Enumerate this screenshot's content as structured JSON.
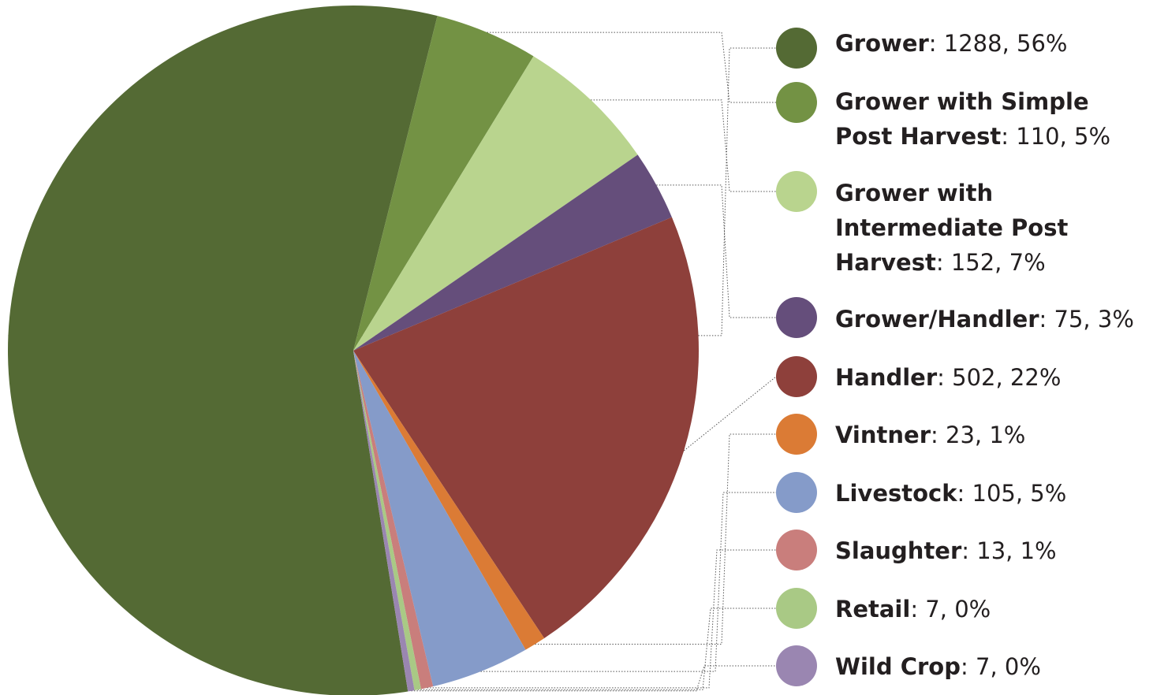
{
  "chart_data": {
    "type": "pie",
    "title": "",
    "slices": [
      {
        "label": "Grower",
        "value": 1288,
        "percent_label": "56%",
        "color": "#546a34"
      },
      {
        "label": "Grower with Simple Post Harvest",
        "value": 110,
        "percent_label": "5%",
        "color": "#739244"
      },
      {
        "label": "Grower with Intermediate Post Harvest",
        "value": 152,
        "percent_label": "7%",
        "color": "#b9d48e"
      },
      {
        "label": "Grower/Handler",
        "value": 75,
        "percent_label": "3%",
        "color": "#654e7b"
      },
      {
        "label": "Handler",
        "value": 502,
        "percent_label": "22%",
        "color": "#8e403b"
      },
      {
        "label": "Vintner",
        "value": 23,
        "percent_label": "1%",
        "color": "#db7b35"
      },
      {
        "label": "Livestock",
        "value": 105,
        "percent_label": "5%",
        "color": "#859bc9"
      },
      {
        "label": "Slaughter",
        "value": 13,
        "percent_label": "1%",
        "color": "#c97e7c"
      },
      {
        "label": "Retail",
        "value": 7,
        "percent_label": "0%",
        "color": "#a9c985"
      },
      {
        "label": "Wild Crop",
        "value": 7,
        "percent_label": "0%",
        "color": "#9a86b1"
      }
    ],
    "legend_position": "right",
    "leader_lines": "dotted"
  },
  "legend": [
    {
      "name": "Grower",
      "detail": ": 1288, 56%"
    },
    {
      "name": "Grower with Simple Post Harvest",
      "detail": ": 110, 5%"
    },
    {
      "name": "Grower with Intermediate Post Harvest",
      "detail": ": 152, 7%"
    },
    {
      "name": "Grower/Handler",
      "detail": ": 75, 3%"
    },
    {
      "name": "Handler",
      "detail": ": 502, 22%"
    },
    {
      "name": "Vintner",
      "detail": ": 23, 1%"
    },
    {
      "name": "Livestock",
      "detail": ": 105, 5%"
    },
    {
      "name": "Slaughter",
      "detail": ": 13, 1%"
    },
    {
      "name": "Retail",
      "detail": ": 7, 0%"
    },
    {
      "name": "Wild Crop",
      "detail": ": 7, 0%"
    }
  ]
}
